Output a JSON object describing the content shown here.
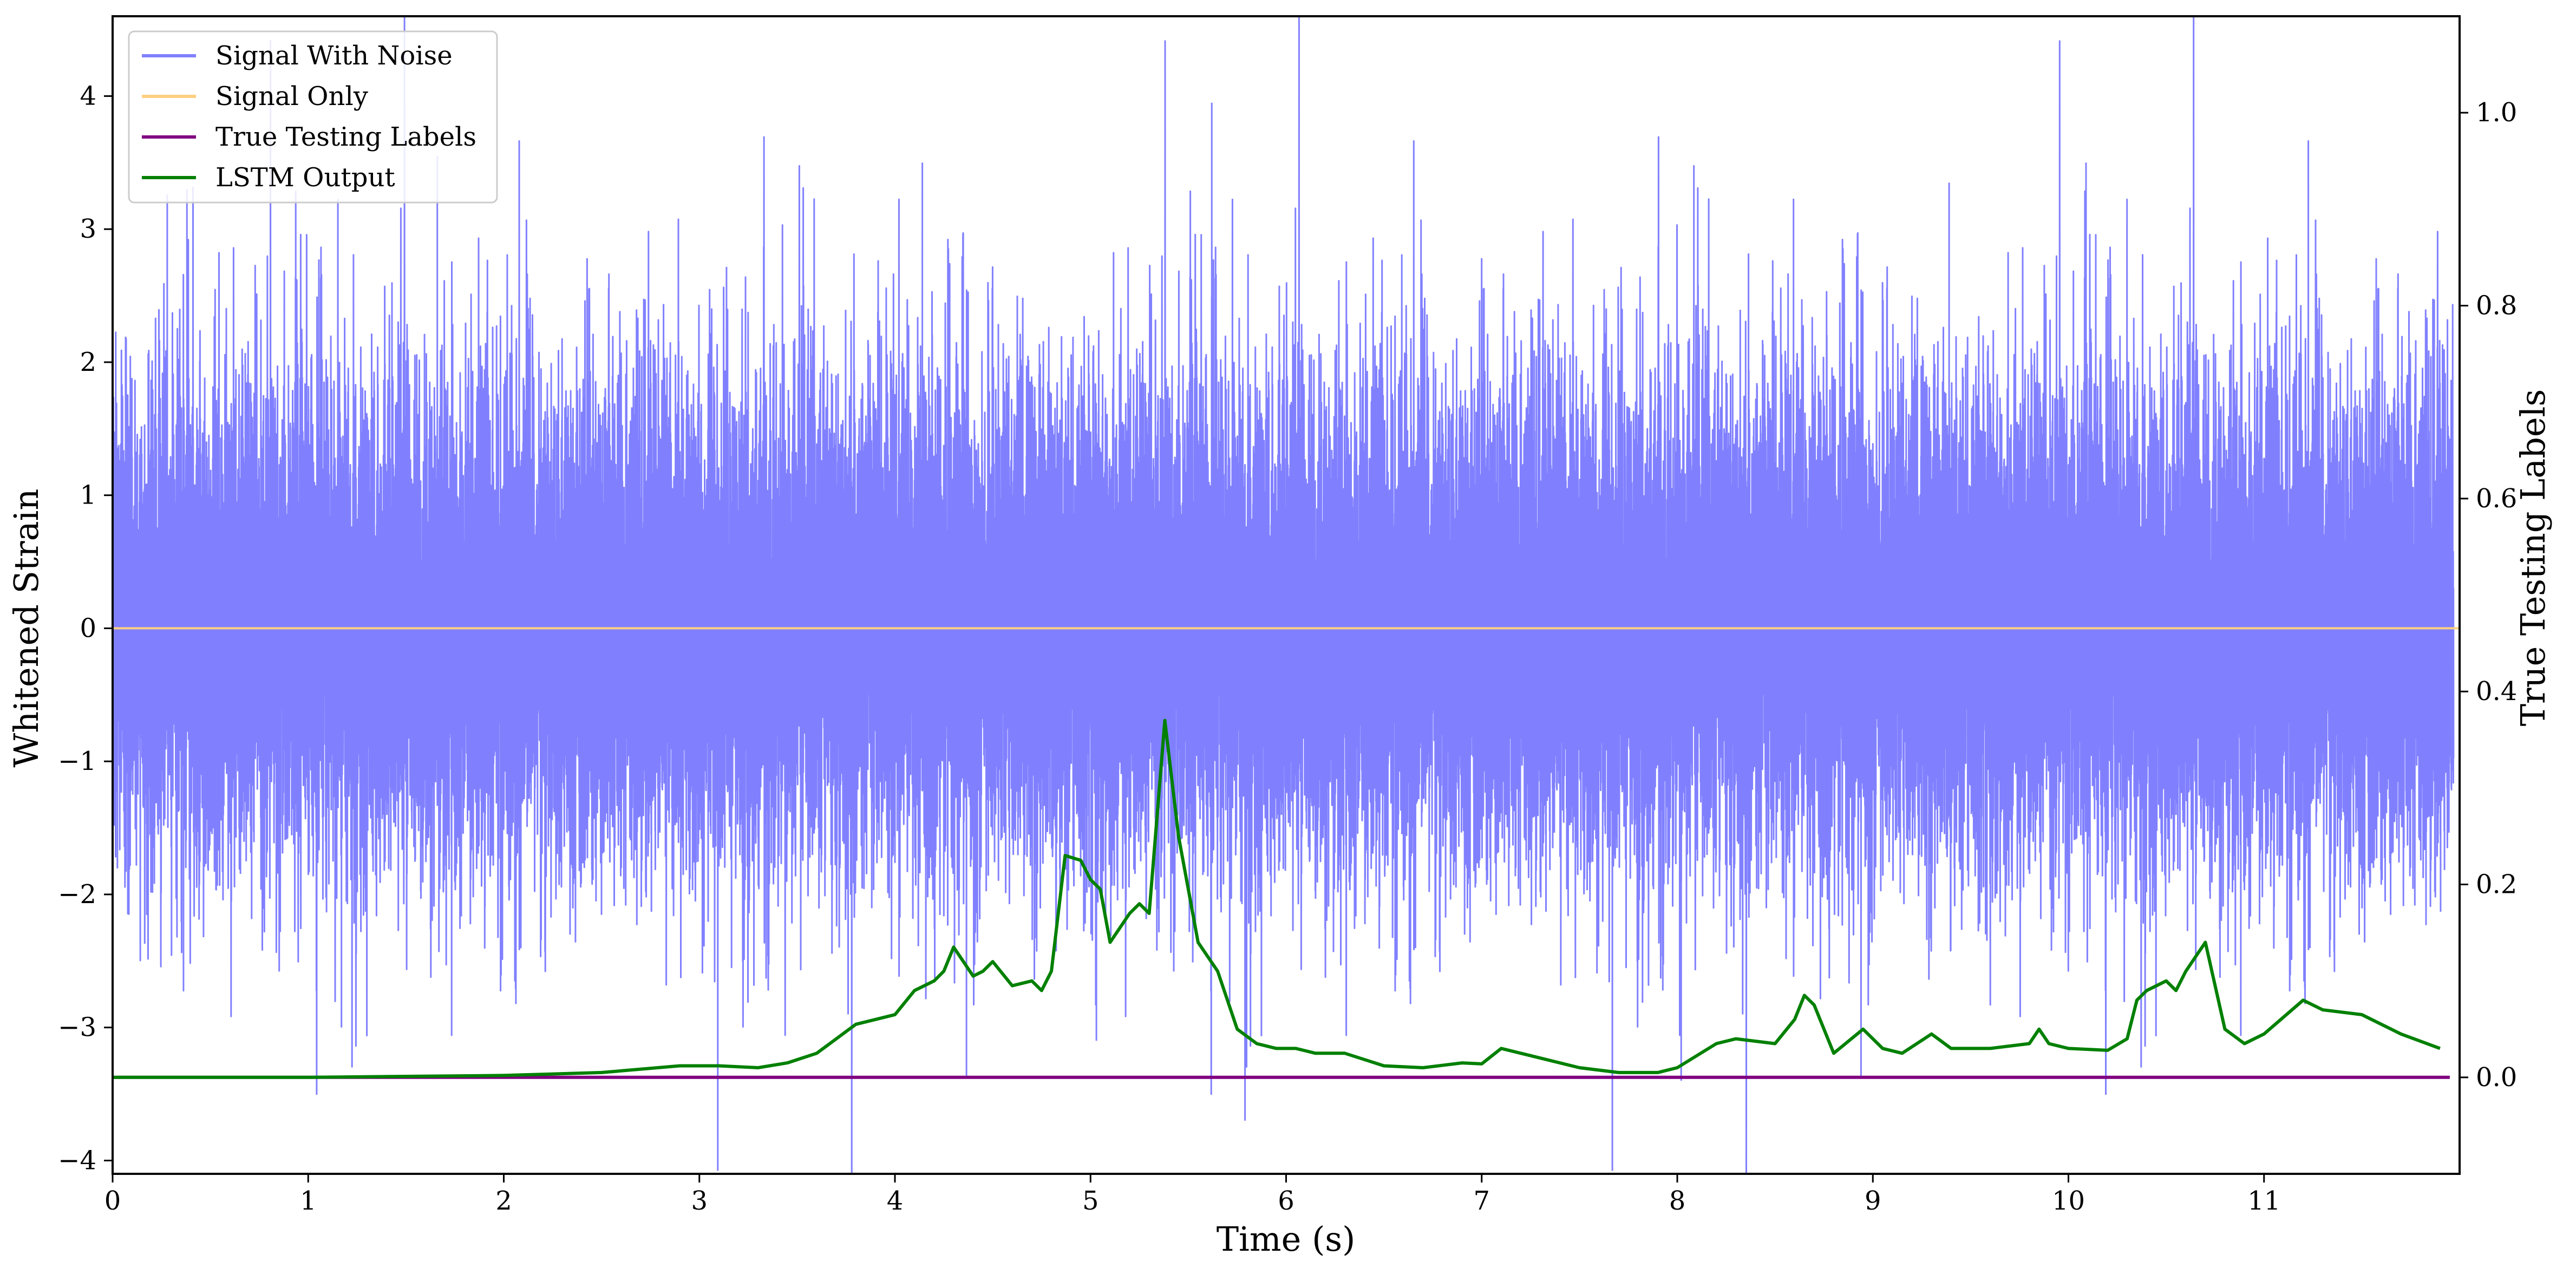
{
  "chart_data": {
    "type": "line",
    "xlabel": "Time (s)",
    "ylabel": "Whitened Strain",
    "y2label": "True Testing Labels",
    "xlim": [
      0,
      12
    ],
    "ylim": [
      -4.1,
      4.6
    ],
    "y2lim": [
      -0.1,
      1.1
    ],
    "x_ticks": [
      0,
      1,
      2,
      3,
      4,
      5,
      6,
      7,
      8,
      9,
      10,
      11
    ],
    "y_ticks": [
      -4,
      -3,
      -2,
      -1,
      0,
      1,
      2,
      3,
      4
    ],
    "y2_ticks": [
      0.0,
      0.2,
      0.4,
      0.6,
      0.8,
      1.0
    ],
    "x_tick_labels": [
      "0",
      "1",
      "2",
      "3",
      "4",
      "5",
      "6",
      "7",
      "8",
      "9",
      "10",
      "11"
    ],
    "y_tick_labels": [
      "−4",
      "−3",
      "−2",
      "−1",
      "0",
      "1",
      "2",
      "3",
      "4"
    ],
    "y2_tick_labels": [
      "0.0",
      "0.2",
      "0.4",
      "0.6",
      "0.8",
      "1.0"
    ],
    "grid": false,
    "legend_position": "top-left",
    "legend": [
      "Signal With Noise",
      "Signal Only",
      "True Testing Labels",
      "LSTM Output"
    ],
    "series": [
      {
        "name": "Signal With Noise",
        "axis": "left",
        "color": "#8080ff",
        "description_values": {
          "typical_band": [
            -1.2,
            1.2
          ],
          "spikes": [
            [
              0.38,
              3.3
            ],
            [
              1.66,
              3.55
            ],
            [
              4.14,
              3.5
            ],
            [
              5.62,
              3.95
            ],
            [
              9.39,
              3.35
            ],
            [
              10.09,
              3.5
            ],
            [
              5.79,
              -3.7
            ],
            [
              8.02,
              -3.4
            ],
            [
              1.17,
              -3.0
            ],
            [
              5.03,
              -3.1
            ]
          ]
        }
      },
      {
        "name": "Signal Only",
        "axis": "left",
        "color": "#ffd080",
        "x": [
          0,
          12
        ],
        "y": [
          0,
          0
        ]
      },
      {
        "name": "True Testing Labels",
        "axis": "right",
        "color": "#800080",
        "x": [
          0,
          11.95
        ],
        "y": [
          0,
          0
        ]
      },
      {
        "name": "LSTM Output",
        "axis": "right",
        "color": "#008000",
        "x": [
          0,
          1.0,
          2.0,
          2.5,
          2.9,
          3.1,
          3.3,
          3.45,
          3.6,
          3.7,
          3.8,
          3.9,
          4.0,
          4.1,
          4.2,
          4.25,
          4.3,
          4.4,
          4.45,
          4.5,
          4.6,
          4.7,
          4.75,
          4.8,
          4.87,
          4.95,
          5.0,
          5.05,
          5.1,
          5.2,
          5.25,
          5.3,
          5.38,
          5.45,
          5.55,
          5.65,
          5.75,
          5.85,
          5.95,
          6.05,
          6.15,
          6.3,
          6.5,
          6.7,
          6.9,
          7.0,
          7.1,
          7.3,
          7.5,
          7.7,
          7.9,
          8.0,
          8.2,
          8.3,
          8.5,
          8.6,
          8.65,
          8.7,
          8.8,
          8.95,
          9.05,
          9.15,
          9.3,
          9.4,
          9.6,
          9.8,
          9.85,
          9.9,
          10.0,
          10.2,
          10.3,
          10.35,
          10.4,
          10.5,
          10.55,
          10.6,
          10.7,
          10.8,
          10.9,
          11.0,
          11.2,
          11.3,
          11.5,
          11.7,
          11.9
        ],
        "y": [
          0.0,
          0.0,
          0.002,
          0.005,
          0.012,
          0.012,
          0.01,
          0.015,
          0.025,
          0.04,
          0.055,
          0.06,
          0.065,
          0.09,
          0.1,
          0.11,
          0.135,
          0.105,
          0.11,
          0.12,
          0.095,
          0.1,
          0.09,
          0.11,
          0.23,
          0.225,
          0.205,
          0.195,
          0.14,
          0.17,
          0.18,
          0.17,
          0.37,
          0.25,
          0.14,
          0.11,
          0.05,
          0.035,
          0.03,
          0.03,
          0.025,
          0.025,
          0.012,
          0.01,
          0.015,
          0.014,
          0.03,
          0.02,
          0.01,
          0.005,
          0.005,
          0.01,
          0.035,
          0.04,
          0.035,
          0.06,
          0.085,
          0.075,
          0.025,
          0.05,
          0.03,
          0.025,
          0.045,
          0.03,
          0.03,
          0.035,
          0.05,
          0.035,
          0.03,
          0.028,
          0.04,
          0.08,
          0.09,
          0.1,
          0.09,
          0.11,
          0.14,
          0.05,
          0.035,
          0.045,
          0.08,
          0.07,
          0.065,
          0.045,
          0.03
        ]
      }
    ]
  }
}
